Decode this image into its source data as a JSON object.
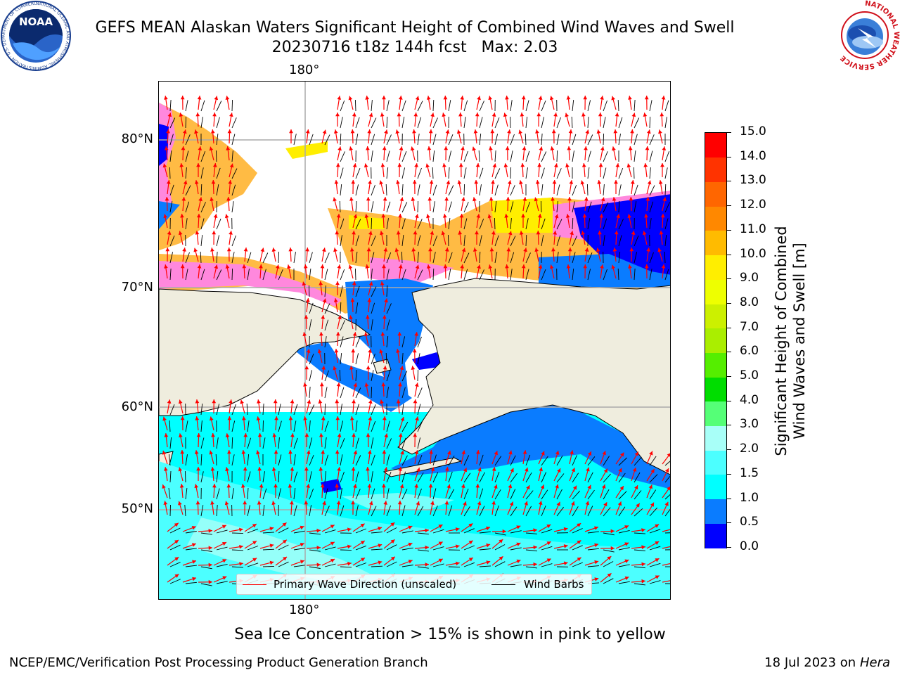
{
  "header": {
    "title_line1": "GEFS MEAN Alaskan Waters Significant Height of Combined Wind Waves and Swell",
    "title_line2": "20230716 t18z 144h fcst   Max: 2.03",
    "noaa_logo_text": "NOAA",
    "noaa_ring_text": "NATIONAL OCEANIC AND ATMOSPHERIC ADMINISTRATION · U.S. DEPARTMENT OF COMMERCE",
    "nws_ring_text": "NATIONAL WEATHER SERVICE"
  },
  "map": {
    "lon_label_top": "180°",
    "lon_label_bottom": "180°",
    "lat_labels": [
      "80°N",
      "70°N",
      "60°N",
      "50°N"
    ],
    "colors": {
      "land": "#efedde",
      "ice_pink": "#ff88dd",
      "ice_orange": "#ffbb44",
      "ice_yellow": "#ffee00",
      "wave_lowest": "#0000ff",
      "wave_low": "#0a7cff",
      "wave_mid": "#00ffff",
      "wave_high": "#4cffff",
      "wave_highest": "#a8fff8"
    }
  },
  "legend": {
    "wave_label": "Primary Wave Direction (unscaled)",
    "barb_label": "Wind Barbs",
    "wave_color": "#ff0000",
    "barb_color": "#000000"
  },
  "colorbar": {
    "title_line1": "Significant Height of Combined",
    "title_line2": "Wind Waves and Swell [m]",
    "levels": [
      "0.0",
      "0.5",
      "1.0",
      "1.5",
      "2.0",
      "3.0",
      "4.0",
      "5.0",
      "6.0",
      "7.0",
      "8.0",
      "9.0",
      "10.0",
      "11.0",
      "12.0",
      "13.0",
      "14.0",
      "15.0"
    ],
    "colors": [
      "#0000ff",
      "#0a7cff",
      "#00ffff",
      "#4cffff",
      "#a8fff8",
      "#55ff77",
      "#00dd00",
      "#55ee00",
      "#aaee00",
      "#ccf000",
      "#eeff00",
      "#ffee00",
      "#ffbb00",
      "#ff8800",
      "#ff6600",
      "#ff3300",
      "#ff0000"
    ]
  },
  "footer": {
    "note": "Sea Ice Concentration > 15% is shown in pink to yellow",
    "credit_left": "NCEP/EMC/Verification Post Processing Product Generation Branch",
    "credit_date": "18 Jul 2023 on ",
    "credit_host": "Hera"
  }
}
